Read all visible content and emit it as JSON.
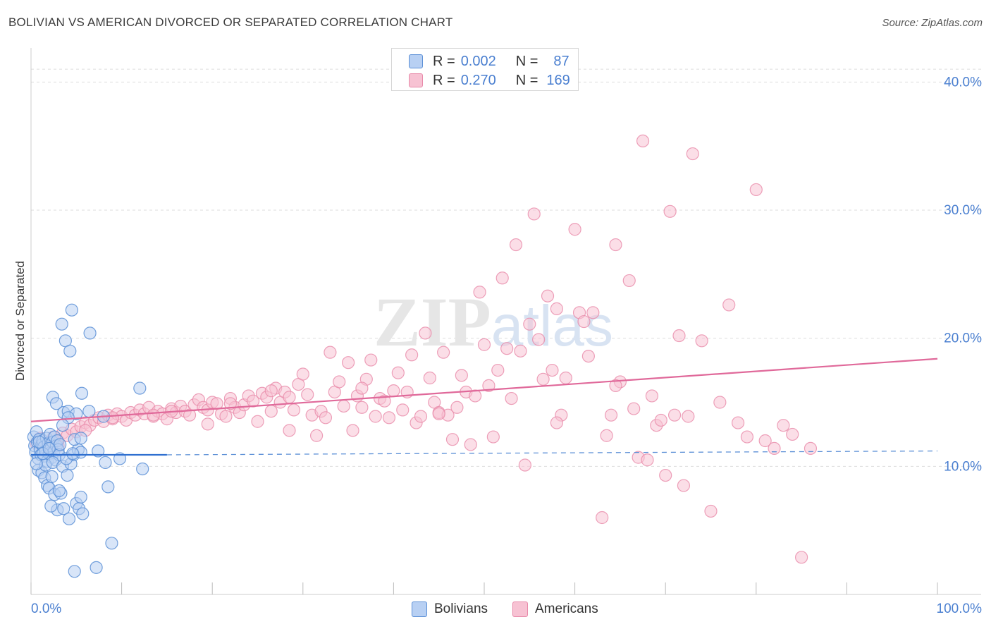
{
  "header": {
    "title": "BOLIVIAN VS AMERICAN DIVORCED OR SEPARATED CORRELATION CHART",
    "source": "Source: ZipAtlas.com"
  },
  "legend_top": {
    "rows": [
      {
        "r_label": "R =",
        "r_value": "0.002",
        "n_label": "N =",
        "n_value": "87"
      },
      {
        "r_label": "R =",
        "r_value": "0.270",
        "n_label": "N =",
        "n_value": "169"
      }
    ]
  },
  "legend_bottom": {
    "items": [
      {
        "label": "Bolivians"
      },
      {
        "label": "Americans"
      }
    ]
  },
  "colors": {
    "blue_fill": "#b8d0f3",
    "blue_stroke": "#5b8fd6",
    "blue_line": "#2f6fd0",
    "pink_fill": "#f7c2d3",
    "pink_stroke": "#e889a9",
    "pink_line": "#e0699a",
    "axis_label": "#4a7fd0",
    "grid": "#dddddd"
  },
  "chart_data": {
    "type": "scatter",
    "title": "BOLIVIAN VS AMERICAN DIVORCED OR SEPARATED CORRELATION CHART",
    "xlabel": "",
    "ylabel": "Divorced or Separated",
    "xlim": [
      0,
      100
    ],
    "ylim": [
      0,
      42
    ],
    "x_tick_labels": [
      "0.0%",
      "100.0%"
    ],
    "y_ticks": [
      10,
      20,
      30,
      40
    ],
    "y_tick_labels": [
      "10.0%",
      "20.0%",
      "30.0%",
      "40.0%"
    ],
    "grid": true,
    "watermark": "ZIPatlas",
    "series": [
      {
        "name": "Bolivians",
        "r": 0.002,
        "n": 87,
        "trend": {
          "x": [
            0,
            15
          ],
          "y": [
            10.9,
            10.9
          ],
          "dashed_to": [
            100,
            11.2
          ]
        },
        "points": [
          [
            0.3,
            12.3
          ],
          [
            0.4,
            11.6
          ],
          [
            0.5,
            11.1
          ],
          [
            0.6,
            12.7
          ],
          [
            0.7,
            11.9
          ],
          [
            0.8,
            10.6
          ],
          [
            0.9,
            12.1
          ],
          [
            1.0,
            11.3
          ],
          [
            1.1,
            10.9
          ],
          [
            1.2,
            11.7
          ],
          [
            1.3,
            12.0
          ],
          [
            1.4,
            11.5
          ],
          [
            1.5,
            10.8
          ],
          [
            1.6,
            11.2
          ],
          [
            1.7,
            12.2
          ],
          [
            1.8,
            10.4
          ],
          [
            1.9,
            11.8
          ],
          [
            2.0,
            11.0
          ],
          [
            2.1,
            12.5
          ],
          [
            2.2,
            11.4
          ],
          [
            2.3,
            10.7
          ],
          [
            2.4,
            11.9
          ],
          [
            2.5,
            11.1
          ],
          [
            2.6,
            12.3
          ],
          [
            2.7,
            10.5
          ],
          [
            2.8,
            11.6
          ],
          [
            2.9,
            12.0
          ],
          [
            3.0,
            11.3
          ],
          [
            3.1,
            10.9
          ],
          [
            3.2,
            11.7
          ],
          [
            0.8,
            9.7
          ],
          [
            1.2,
            9.5
          ],
          [
            1.5,
            9.1
          ],
          [
            1.8,
            8.5
          ],
          [
            2.0,
            8.3
          ],
          [
            2.3,
            9.2
          ],
          [
            2.6,
            7.8
          ],
          [
            2.9,
            6.6
          ],
          [
            3.3,
            7.9
          ],
          [
            3.6,
            6.7
          ],
          [
            1.6,
            10.1
          ],
          [
            2.4,
            10.3
          ],
          [
            3.5,
            10.0
          ],
          [
            4.0,
            9.3
          ],
          [
            4.4,
            10.2
          ],
          [
            4.7,
            10.9
          ],
          [
            5.2,
            11.3
          ],
          [
            5.5,
            11.1
          ],
          [
            5.0,
            7.1
          ],
          [
            5.3,
            6.7
          ],
          [
            5.5,
            7.6
          ],
          [
            5.7,
            6.3
          ],
          [
            4.2,
            5.9
          ],
          [
            4.5,
            22.2
          ],
          [
            3.4,
            21.1
          ],
          [
            3.8,
            19.8
          ],
          [
            4.3,
            19.0
          ],
          [
            6.5,
            20.4
          ],
          [
            2.4,
            15.4
          ],
          [
            2.8,
            14.9
          ],
          [
            3.6,
            14.2
          ],
          [
            4.1,
            14.3
          ],
          [
            5.0,
            14.1
          ],
          [
            5.6,
            15.7
          ],
          [
            4.1,
            13.8
          ],
          [
            6.4,
            14.3
          ],
          [
            3.5,
            13.2
          ],
          [
            4.8,
            12.1
          ],
          [
            5.5,
            12.2
          ],
          [
            7.4,
            11.2
          ],
          [
            8.2,
            10.3
          ],
          [
            8.5,
            8.4
          ],
          [
            9.8,
            10.6
          ],
          [
            12.0,
            16.1
          ],
          [
            12.3,
            9.8
          ],
          [
            8.9,
            4.0
          ],
          [
            7.2,
            2.1
          ],
          [
            4.8,
            1.8
          ],
          [
            2.2,
            6.9
          ],
          [
            3.1,
            8.1
          ],
          [
            1.3,
            11.0
          ],
          [
            0.6,
            10.2
          ],
          [
            0.9,
            11.9
          ],
          [
            2.0,
            11.4
          ],
          [
            3.9,
            10.6
          ],
          [
            4.6,
            11.0
          ],
          [
            8.0,
            13.9
          ]
        ]
      },
      {
        "name": "Americans",
        "r": 0.27,
        "n": 169,
        "trend": {
          "x": [
            0,
            100
          ],
          "y": [
            13.5,
            18.4
          ]
        },
        "points": [
          [
            0.6,
            11.8
          ],
          [
            1.0,
            12.2
          ],
          [
            1.5,
            11.5
          ],
          [
            2.0,
            11.9
          ],
          [
            2.5,
            12.3
          ],
          [
            3.0,
            12.0
          ],
          [
            3.5,
            12.6
          ],
          [
            4.0,
            12.4
          ],
          [
            4.5,
            12.9
          ],
          [
            5.0,
            12.7
          ],
          [
            5.5,
            13.1
          ],
          [
            6.0,
            13.4
          ],
          [
            6.5,
            13.2
          ],
          [
            7.0,
            13.6
          ],
          [
            7.5,
            13.8
          ],
          [
            8.0,
            13.5
          ],
          [
            8.5,
            14.0
          ],
          [
            9.0,
            13.7
          ],
          [
            9.5,
            14.1
          ],
          [
            10.0,
            13.9
          ],
          [
            10.5,
            13.6
          ],
          [
            11.0,
            14.2
          ],
          [
            11.5,
            14.0
          ],
          [
            12.0,
            14.4
          ],
          [
            12.5,
            14.1
          ],
          [
            13.0,
            14.6
          ],
          [
            13.5,
            13.9
          ],
          [
            14.0,
            14.3
          ],
          [
            14.5,
            14.1
          ],
          [
            15.0,
            13.7
          ],
          [
            15.5,
            14.5
          ],
          [
            16.0,
            14.2
          ],
          [
            16.5,
            14.7
          ],
          [
            17.0,
            14.3
          ],
          [
            17.5,
            14.0
          ],
          [
            18.0,
            14.8
          ],
          [
            18.5,
            15.2
          ],
          [
            19.0,
            14.6
          ],
          [
            19.5,
            14.4
          ],
          [
            20.0,
            15.0
          ],
          [
            20.5,
            14.9
          ],
          [
            21.0,
            14.1
          ],
          [
            21.5,
            13.9
          ],
          [
            22.0,
            15.3
          ],
          [
            22.5,
            14.6
          ],
          [
            23.0,
            14.2
          ],
          [
            23.5,
            14.8
          ],
          [
            24.0,
            15.5
          ],
          [
            24.5,
            15.1
          ],
          [
            25.0,
            13.5
          ],
          [
            25.5,
            15.7
          ],
          [
            26.0,
            15.4
          ],
          [
            26.5,
            14.3
          ],
          [
            27.0,
            16.1
          ],
          [
            27.5,
            15.0
          ],
          [
            28.0,
            15.8
          ],
          [
            28.5,
            12.8
          ],
          [
            29.0,
            14.4
          ],
          [
            29.5,
            16.4
          ],
          [
            30.0,
            17.2
          ],
          [
            30.5,
            15.6
          ],
          [
            31.0,
            14.0
          ],
          [
            31.5,
            12.4
          ],
          [
            32.0,
            14.3
          ],
          [
            32.5,
            13.8
          ],
          [
            33.0,
            18.9
          ],
          [
            33.5,
            15.8
          ],
          [
            34.0,
            16.6
          ],
          [
            34.5,
            14.7
          ],
          [
            35.0,
            18.1
          ],
          [
            35.5,
            12.8
          ],
          [
            36.0,
            15.5
          ],
          [
            36.5,
            14.6
          ],
          [
            37.0,
            16.8
          ],
          [
            37.5,
            18.3
          ],
          [
            38.0,
            13.9
          ],
          [
            38.5,
            15.3
          ],
          [
            39.0,
            15.1
          ],
          [
            39.5,
            13.8
          ],
          [
            40.0,
            15.9
          ],
          [
            40.5,
            17.3
          ],
          [
            41.0,
            14.4
          ],
          [
            41.5,
            15.8
          ],
          [
            42.0,
            18.7
          ],
          [
            42.5,
            13.4
          ],
          [
            43.0,
            13.9
          ],
          [
            43.5,
            20.4
          ],
          [
            44.0,
            16.9
          ],
          [
            44.5,
            15.0
          ],
          [
            45.0,
            14.2
          ],
          [
            45.5,
            18.9
          ],
          [
            46.0,
            14.0
          ],
          [
            46.5,
            12.1
          ],
          [
            47.0,
            14.6
          ],
          [
            47.5,
            17.1
          ],
          [
            48.0,
            15.8
          ],
          [
            48.5,
            11.7
          ],
          [
            49.0,
            15.5
          ],
          [
            49.5,
            23.6
          ],
          [
            50.0,
            19.5
          ],
          [
            50.5,
            16.3
          ],
          [
            51.0,
            12.3
          ],
          [
            51.5,
            17.5
          ],
          [
            52.0,
            24.7
          ],
          [
            52.5,
            19.2
          ],
          [
            53.0,
            15.3
          ],
          [
            53.5,
            27.3
          ],
          [
            54.0,
            19.0
          ],
          [
            54.5,
            10.1
          ],
          [
            55.0,
            21.1
          ],
          [
            55.5,
            29.7
          ],
          [
            56.0,
            19.9
          ],
          [
            56.5,
            16.8
          ],
          [
            57.0,
            23.3
          ],
          [
            57.5,
            17.5
          ],
          [
            58.0,
            22.3
          ],
          [
            58.5,
            14.0
          ],
          [
            59.0,
            16.9
          ],
          [
            60.0,
            28.5
          ],
          [
            60.5,
            22.0
          ],
          [
            61.0,
            21.3
          ],
          [
            61.5,
            18.6
          ],
          [
            62.0,
            22.0
          ],
          [
            63.0,
            6.0
          ],
          [
            63.5,
            12.4
          ],
          [
            64.0,
            14.0
          ],
          [
            64.5,
            27.3
          ],
          [
            65.0,
            16.6
          ],
          [
            66.0,
            24.5
          ],
          [
            66.5,
            14.5
          ],
          [
            67.0,
            10.7
          ],
          [
            67.5,
            35.4
          ],
          [
            68.0,
            10.5
          ],
          [
            68.5,
            15.5
          ],
          [
            69.0,
            13.2
          ],
          [
            69.5,
            13.6
          ],
          [
            70.0,
            9.3
          ],
          [
            70.5,
            29.9
          ],
          [
            71.0,
            14.0
          ],
          [
            71.5,
            20.2
          ],
          [
            72.0,
            8.5
          ],
          [
            72.5,
            13.9
          ],
          [
            73.0,
            34.4
          ],
          [
            74.0,
            19.8
          ],
          [
            75.0,
            6.5
          ],
          [
            76.0,
            15.0
          ],
          [
            77.0,
            22.6
          ],
          [
            78.0,
            13.4
          ],
          [
            79.0,
            12.3
          ],
          [
            80.0,
            31.6
          ],
          [
            81.0,
            12.0
          ],
          [
            82.0,
            11.4
          ],
          [
            83.0,
            13.2
          ],
          [
            84.0,
            12.5
          ],
          [
            85.0,
            2.9
          ],
          [
            86.0,
            11.4
          ],
          [
            15.5,
            14.3
          ],
          [
            22.0,
            14.9
          ],
          [
            28.5,
            15.4
          ],
          [
            36.5,
            16.1
          ],
          [
            45.0,
            14.1
          ],
          [
            58.0,
            13.4
          ],
          [
            64.5,
            16.3
          ],
          [
            9.0,
            13.8
          ],
          [
            6.0,
            12.8
          ],
          [
            3.0,
            11.6
          ],
          [
            13.5,
            14.0
          ],
          [
            19.5,
            13.3
          ],
          [
            26.5,
            15.9
          ]
        ]
      }
    ]
  }
}
